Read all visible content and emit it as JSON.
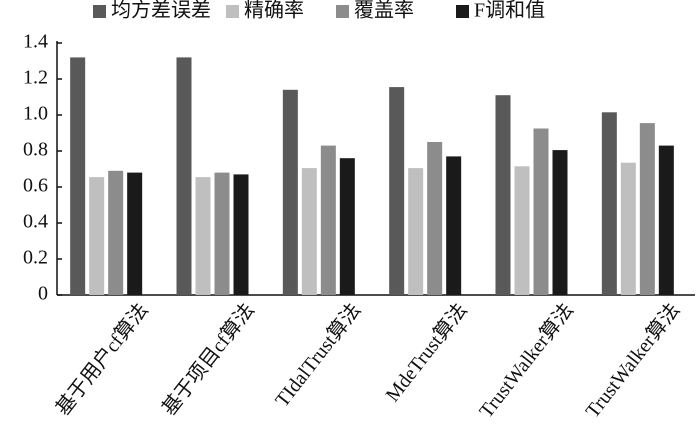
{
  "chart_data": {
    "type": "bar",
    "categories": [
      "基于用户cf算法",
      "基于项目cf算法",
      "TIdalTrust算法",
      "MdeTrust算法",
      "TrustWalker算法",
      "TrustWalker算法"
    ],
    "series": [
      {
        "name": "均方差误差",
        "color": "#595959",
        "values": [
          1.32,
          1.32,
          1.14,
          1.155,
          1.11,
          1.015
        ]
      },
      {
        "name": "精确率",
        "color": "#bfbfbf",
        "values": [
          0.655,
          0.655,
          0.705,
          0.705,
          0.715,
          0.735
        ]
      },
      {
        "name": "覆盖率",
        "color": "#8c8c8c",
        "values": [
          0.69,
          0.68,
          0.83,
          0.85,
          0.925,
          0.955
        ]
      },
      {
        "name": "F调和值",
        "color": "#1a1a1a",
        "values": [
          0.68,
          0.67,
          0.76,
          0.77,
          0.805,
          0.83
        ]
      }
    ],
    "ylim": [
      0,
      1.4
    ],
    "yticks": [
      0,
      0.2,
      0.4,
      0.6,
      0.8,
      {
        "value": 1,
        "label": "1.0"
      },
      1.2,
      1.4
    ],
    "legend": "top"
  }
}
